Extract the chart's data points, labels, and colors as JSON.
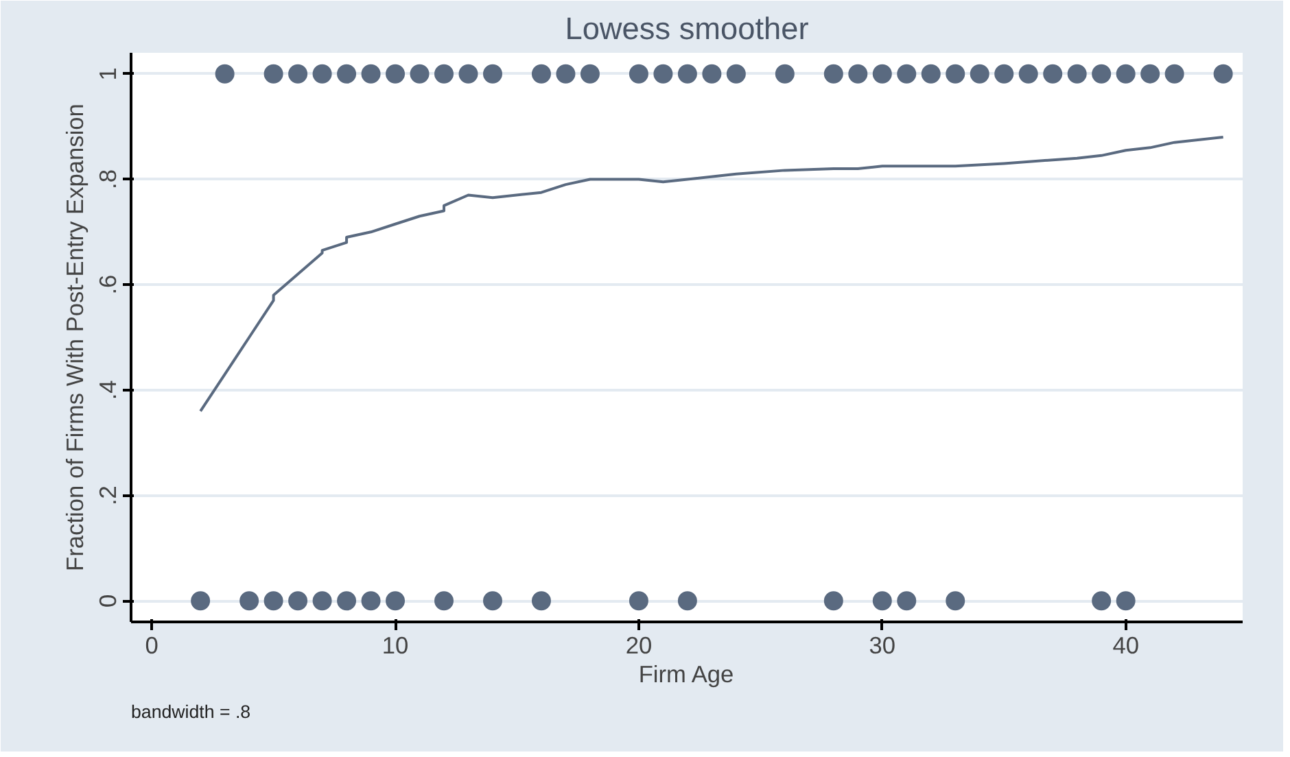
{
  "chart_data": {
    "type": "scatter",
    "title": "Lowess smoother",
    "xlabel": "Firm Age",
    "ylabel": "Fraction of Firms With Post-Entry Expansion",
    "annotations": [
      "bandwidth = .8"
    ],
    "xlim": [
      -0.85,
      44.8
    ],
    "ylim": [
      -0.04,
      1.04
    ],
    "xticks": [
      0,
      10,
      20,
      30,
      40
    ],
    "yticks": [
      {
        "value": 0,
        "label": "0"
      },
      {
        "value": 0.2,
        "label": ".2"
      },
      {
        "value": 0.4,
        "label": ".4"
      },
      {
        "value": 0.6,
        "label": ".6"
      },
      {
        "value": 0.8,
        "label": ".8"
      },
      {
        "value": 1,
        "label": "1"
      }
    ],
    "grid": "y",
    "marker": "circle",
    "series": [
      {
        "color": "#5a6a80",
        "x": [
          3,
          5,
          6,
          7,
          8,
          9,
          10,
          11,
          12,
          13,
          14,
          16,
          17,
          18,
          20,
          21,
          22,
          23,
          24,
          26,
          28,
          29,
          30,
          31,
          32,
          33,
          34,
          35,
          36,
          37,
          38,
          39,
          40,
          41,
          42,
          44,
          2,
          4,
          5,
          6,
          7,
          8,
          9,
          10,
          12,
          14,
          16,
          20,
          22,
          28,
          30,
          31,
          33,
          39,
          40
        ],
        "values": [
          1,
          1,
          1,
          1,
          1,
          1,
          1,
          1,
          1,
          1,
          1,
          1,
          1,
          1,
          1,
          1,
          1,
          1,
          1,
          1,
          1,
          1,
          1,
          1,
          1,
          1,
          1,
          1,
          1,
          1,
          1,
          1,
          1,
          1,
          1,
          1,
          0,
          0,
          0,
          0,
          0,
          0,
          0,
          0,
          0,
          0,
          0,
          0,
          0,
          0,
          0,
          0,
          0,
          0,
          0
        ]
      },
      {
        "type": "line",
        "color": "#5a6a80",
        "marker": "none",
        "line_style": "solid",
        "x": [
          2,
          3,
          4,
          5,
          5,
          6,
          7,
          7,
          8,
          8,
          9,
          10,
          11,
          12,
          12,
          13,
          14,
          16,
          17,
          18,
          20,
          21,
          22,
          24,
          26,
          28,
          29,
          30,
          33,
          35,
          38,
          39,
          40,
          41,
          42,
          44
        ],
        "values": [
          0.36,
          0.43,
          0.5,
          0.57,
          0.58,
          0.62,
          0.66,
          0.665,
          0.68,
          0.69,
          0.7,
          0.715,
          0.73,
          0.74,
          0.75,
          0.77,
          0.765,
          0.775,
          0.79,
          0.8,
          0.8,
          0.795,
          0.8,
          0.81,
          0.817,
          0.82,
          0.82,
          0.825,
          0.825,
          0.83,
          0.84,
          0.845,
          0.855,
          0.86,
          0.87,
          0.88
        ]
      }
    ]
  }
}
